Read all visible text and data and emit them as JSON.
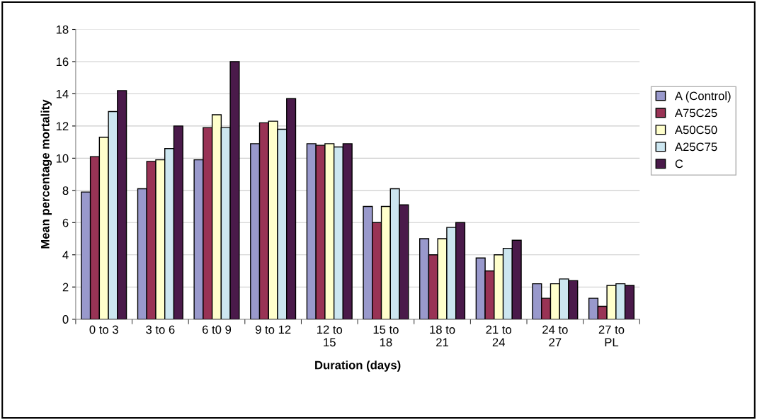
{
  "chart_data": {
    "type": "bar",
    "xlabel": "Duration (days)",
    "ylabel": "Mean percentage mortality",
    "categories": [
      "0 to 3",
      "3 to 6",
      "6 t0 9",
      "9 to 12",
      "12 to\n15",
      "15 to\n18",
      "18 to\n21",
      "21 to\n24",
      "24 to\n27",
      "27 to\nPL"
    ],
    "series": [
      {
        "name": "A (Control)",
        "color": "#9999cc",
        "values": [
          7.9,
          8.1,
          9.9,
          10.9,
          10.9,
          7.0,
          5.0,
          3.8,
          2.2,
          1.3
        ]
      },
      {
        "name": "A75C25",
        "color": "#993355",
        "values": [
          10.1,
          9.8,
          11.9,
          12.2,
          10.8,
          6.0,
          4.0,
          3.0,
          1.3,
          0.8
        ]
      },
      {
        "name": "A50C50",
        "color": "#ffffcc",
        "values": [
          11.3,
          9.9,
          12.7,
          12.3,
          10.9,
          7.0,
          5.0,
          4.0,
          2.2,
          2.1
        ]
      },
      {
        "name": "A25C75",
        "color": "#cce6f0",
        "values": [
          12.9,
          10.6,
          11.9,
          11.8,
          10.7,
          8.1,
          5.7,
          4.4,
          2.5,
          2.2
        ]
      },
      {
        "name": "C",
        "color": "#4a1a4a",
        "values": [
          14.2,
          12.0,
          16.0,
          13.7,
          10.9,
          7.1,
          6.0,
          4.9,
          2.4,
          2.1
        ]
      }
    ],
    "ylim": [
      0,
      18
    ],
    "yticks": [
      0,
      2,
      4,
      6,
      8,
      10,
      12,
      14,
      16,
      18
    ],
    "grid": "y",
    "legend": "right"
  }
}
